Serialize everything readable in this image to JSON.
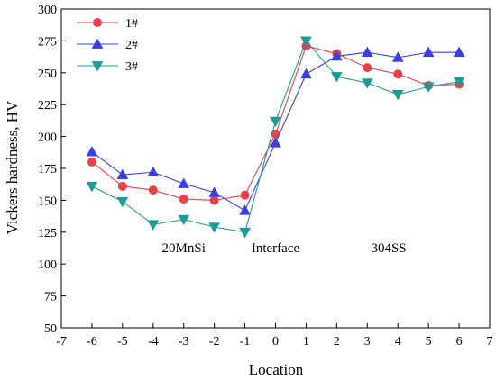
{
  "chart_data": {
    "type": "line",
    "title": "",
    "xlabel": "Location",
    "ylabel": "Vickers hardness, HV",
    "xlim": [
      -7,
      7
    ],
    "ylim": [
      50,
      300
    ],
    "xticks": [
      -7,
      -6,
      -5,
      -4,
      -3,
      -2,
      -1,
      0,
      1,
      2,
      3,
      4,
      5,
      6,
      7
    ],
    "yticks": [
      50,
      75,
      100,
      125,
      150,
      175,
      200,
      225,
      250,
      275,
      300
    ],
    "grid": false,
    "legend_position": "top-left",
    "annotations": [
      "20MnSi",
      "Interface",
      "304SS"
    ],
    "x": [
      -6,
      -5,
      -4,
      -3,
      -2,
      -1,
      0,
      1,
      2,
      3,
      4,
      5,
      6
    ],
    "series": [
      {
        "name": "1#",
        "color": "#e8414a",
        "marker": "circle",
        "values": [
          180,
          161,
          158,
          151,
          150,
          154,
          202,
          271,
          265,
          254,
          249,
          240,
          241
        ]
      },
      {
        "name": "2#",
        "color": "#3b3fe0",
        "marker": "triangle-up",
        "values": [
          188,
          170,
          172,
          163,
          156,
          142,
          195,
          249,
          263,
          266,
          262,
          266,
          266
        ]
      },
      {
        "name": "3#",
        "color": "#1f9b96",
        "marker": "triangle-down",
        "values": [
          161,
          149,
          131,
          135,
          129,
          125,
          212,
          275,
          247,
          242,
          233,
          239,
          243
        ]
      }
    ]
  }
}
